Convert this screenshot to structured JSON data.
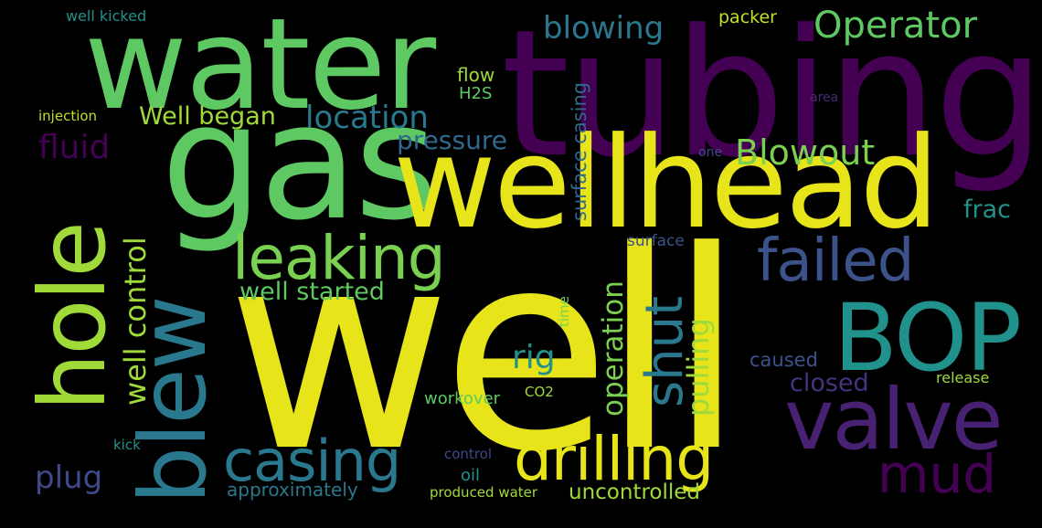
{
  "words": {
    "well": {
      "text": "well",
      "color": "#e7e419"
    },
    "tubing": {
      "text": "tubing",
      "color": "#440154"
    },
    "water": {
      "text": "water",
      "color": "#5ec962"
    },
    "gas": {
      "text": "gas",
      "color": "#5ec962"
    },
    "wellhead": {
      "text": "wellhead",
      "color": "#e7e419"
    },
    "hole": {
      "text": "hole",
      "color": "#a0da39"
    },
    "blew": {
      "text": "blew",
      "color": "#2a788e"
    },
    "bop": {
      "text": "BOP",
      "color": "#21918c"
    },
    "valve": {
      "text": "valve",
      "color": "#482173"
    },
    "leaking": {
      "text": "leaking",
      "color": "#7ad151"
    },
    "failed": {
      "text": "failed",
      "color": "#3b528b"
    },
    "casing": {
      "text": "casing",
      "color": "#2a788e"
    },
    "drilling": {
      "text": "drilling",
      "color": "#e7e419"
    },
    "mud": {
      "text": "mud",
      "color": "#440154"
    },
    "shut": {
      "text": "shut",
      "color": "#2a788e"
    },
    "operator": {
      "text": "Operator",
      "color": "#5ec962"
    },
    "blowout": {
      "text": "Blowout",
      "color": "#7ad151"
    },
    "location": {
      "text": "location",
      "color": "#2a788e"
    },
    "well_began": {
      "text": "Well began",
      "color": "#a0da39"
    },
    "fluid": {
      "text": "fluid",
      "color": "#440154"
    },
    "pressure": {
      "text": "pressure",
      "color": "#31688e"
    },
    "blowing": {
      "text": "blowing",
      "color": "#2a788e"
    },
    "well_control": {
      "text": "well control",
      "color": "#a0da39"
    },
    "well_started": {
      "text": "well started",
      "color": "#5ec962"
    },
    "rig": {
      "text": "rig",
      "color": "#21918c"
    },
    "operation": {
      "text": "operation",
      "color": "#7ad151"
    },
    "pulling": {
      "text": "pulling",
      "color": "#a0da39"
    },
    "plug": {
      "text": "plug",
      "color": "#3e4989"
    },
    "closed": {
      "text": "closed",
      "color": "#46327e"
    },
    "frac": {
      "text": "frac",
      "color": "#21918c"
    },
    "caused": {
      "text": "caused",
      "color": "#3b528b"
    },
    "uncontrolled": {
      "text": "uncontrolled",
      "color": "#a0da39"
    },
    "approximately": {
      "text": "approximately",
      "color": "#2a788e"
    },
    "produced_water": {
      "text": "produced water",
      "color": "#a0da39"
    },
    "oil": {
      "text": "oil",
      "color": "#21918c"
    },
    "workover": {
      "text": "workover",
      "color": "#5ec962"
    },
    "surface_casing": {
      "text": "surface casing",
      "color": "#31688e"
    },
    "flow": {
      "text": "flow",
      "color": "#a0da39"
    },
    "h2s": {
      "text": "H2S",
      "color": "#5ec962"
    },
    "packer": {
      "text": "packer",
      "color": "#c2df23"
    },
    "well_kicked": {
      "text": "well kicked",
      "color": "#21918c"
    },
    "injection": {
      "text": "injection",
      "color": "#c2df23"
    },
    "area": {
      "text": "area",
      "color": "#482878"
    },
    "one": {
      "text": "one",
      "color": "#3e4989"
    },
    "surface": {
      "text": "surface",
      "color": "#3b528b"
    },
    "time": {
      "text": "time",
      "color": "#7ad151"
    },
    "co2": {
      "text": "CO2",
      "color": "#a0da39"
    },
    "release": {
      "text": "release",
      "color": "#a0da39"
    },
    "control": {
      "text": "control",
      "color": "#3e4989"
    },
    "kick": {
      "text": "kick",
      "color": "#21918c"
    }
  }
}
